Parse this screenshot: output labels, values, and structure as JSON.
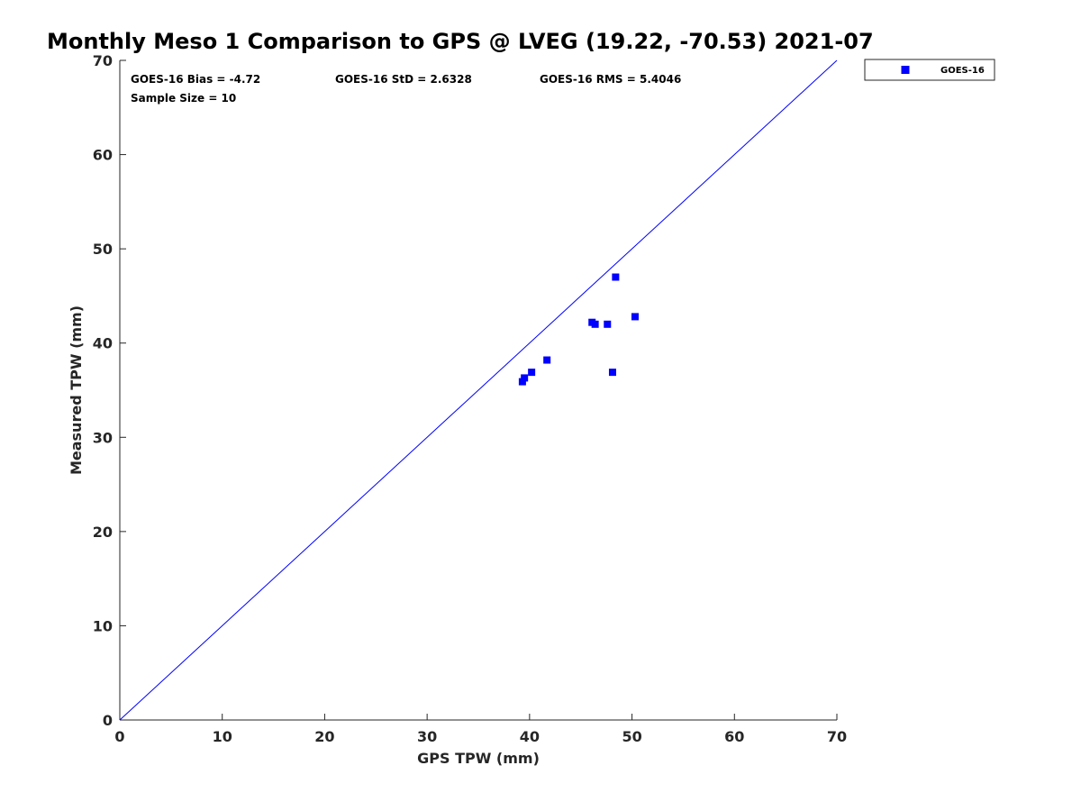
{
  "chart_data": {
    "type": "scatter",
    "title": "Monthly Meso 1 Comparison to GPS @ LVEG (19.22, -70.53) 2021-07",
    "xlabel": "GPS TPW (mm)",
    "ylabel": "Measured TPW (mm)",
    "xlim": [
      0,
      70
    ],
    "ylim": [
      0,
      70
    ],
    "xticks": [
      0,
      10,
      20,
      30,
      40,
      50,
      60,
      70
    ],
    "yticks": [
      0,
      10,
      20,
      30,
      40,
      50,
      60,
      70
    ],
    "grid": false,
    "legend_position": "outside-top-right",
    "reference_line": {
      "x": [
        0,
        70
      ],
      "y": [
        0,
        70
      ],
      "color": "#0000ff"
    },
    "annotations": [
      "GOES-16 Bias = -4.72",
      "GOES-16 StD = 2.6328",
      "GOES-16 RMS = 5.4046",
      "Sample Size = 10"
    ],
    "series": [
      {
        "name": "GOES-16",
        "color": "#0000ff",
        "marker": "square",
        "x": [
          39.3,
          39.5,
          40.2,
          41.7,
          46.1,
          46.4,
          47.6,
          48.1,
          48.4,
          50.3
        ],
        "y": [
          35.9,
          36.3,
          36.9,
          38.2,
          42.2,
          42.0,
          42.0,
          36.9,
          47.0,
          42.8
        ]
      }
    ]
  }
}
